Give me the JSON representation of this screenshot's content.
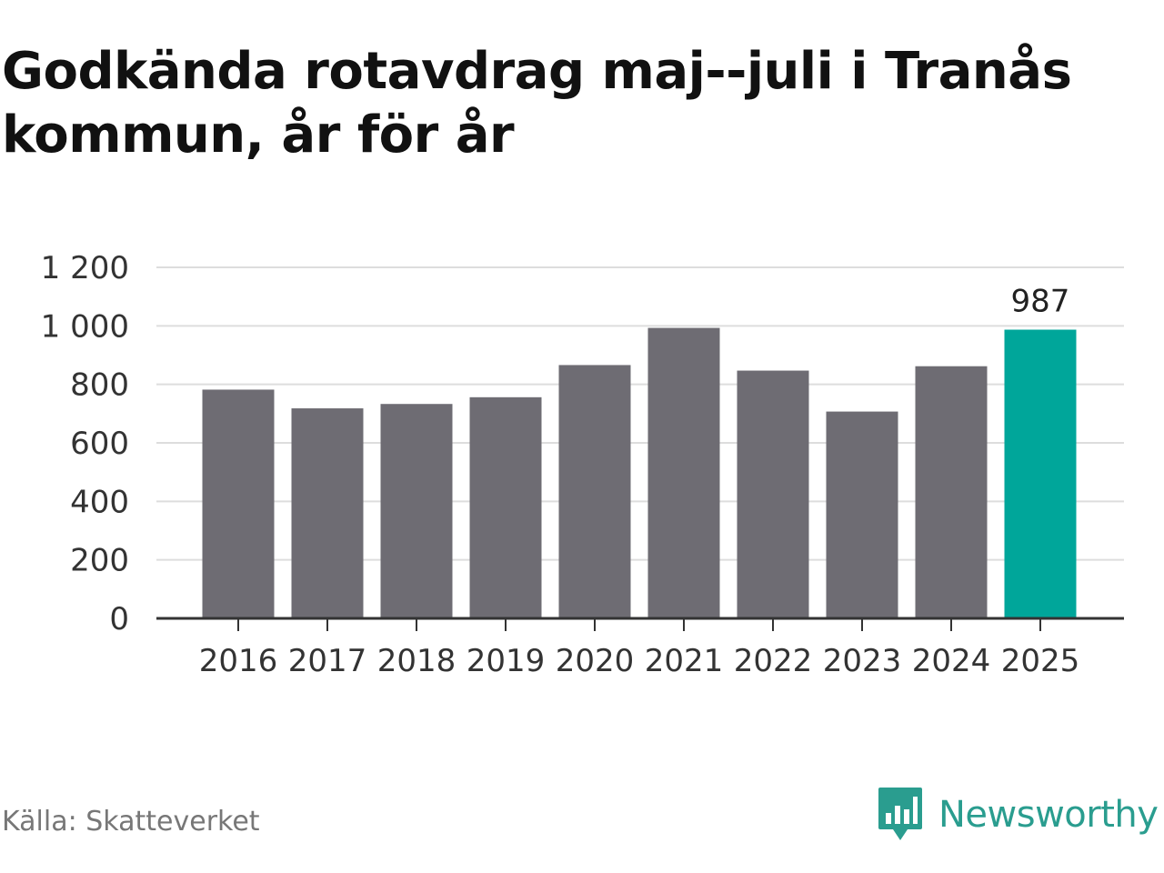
{
  "title": "Godkända rotavdrag maj--juli i Tranås kommun, år för år",
  "source": "Källa: Skatteverket",
  "brand": {
    "name": "Newsworthy",
    "icon": "newsworthy-logo-icon",
    "color": "#2a9d8f"
  },
  "colors": {
    "bar": "#6e6c73",
    "highlight": "#00a69a",
    "grid": "#dddddd",
    "axis": "#333333"
  },
  "chart_data": {
    "type": "bar",
    "title": "Godkända rotavdrag maj--juli i Tranås kommun, år för år",
    "xlabel": "",
    "ylabel": "",
    "categories": [
      "2016",
      "2017",
      "2018",
      "2019",
      "2020",
      "2021",
      "2022",
      "2023",
      "2024",
      "2025"
    ],
    "values": [
      782,
      718,
      733,
      756,
      866,
      993,
      847,
      707,
      862,
      987
    ],
    "ylim": [
      0,
      1200
    ],
    "yticks": [
      0,
      200,
      400,
      600,
      800,
      1000,
      1200
    ],
    "ytick_labels": [
      "0",
      "200",
      "400",
      "600",
      "800",
      "1 000",
      "1 200"
    ],
    "highlight_index": 9,
    "data_labels": [
      {
        "index": 9,
        "text": "987"
      }
    ],
    "grid": true
  }
}
